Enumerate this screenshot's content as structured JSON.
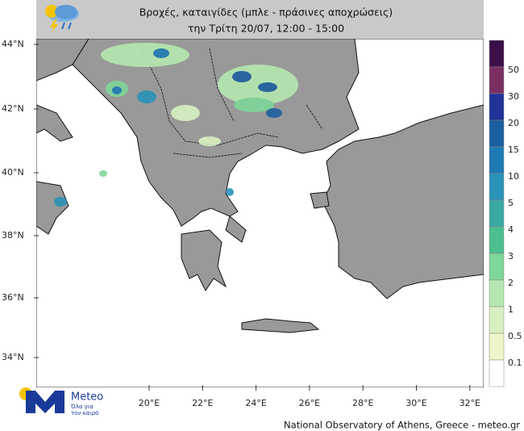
{
  "header": {
    "title_lines": [
      "Βροχές, καταιγίδες (μπλε - πράσινες αποχρώσεις)",
      "την Τρίτη 20/07, 12:00 - 15:00"
    ]
  },
  "map": {
    "lat_labels": [
      "44°N",
      "42°N",
      "40°N",
      "38°N",
      "36°N",
      "34°N"
    ],
    "lon_labels": [
      "20°E",
      "22°E",
      "24°E",
      "26°E",
      "28°E",
      "30°E",
      "32°E"
    ]
  },
  "legend": {
    "levels": [
      "50",
      "30",
      "20",
      "15",
      "10",
      "5",
      "4",
      "3",
      "2",
      "1",
      "0.5",
      "0.1"
    ]
  },
  "logo": {
    "name": "Meteo",
    "tagline_1": "Όλα για",
    "tagline_2": "τον καιρό"
  },
  "footer": "National Observatory of Athens, Greece - meteo.gr"
}
